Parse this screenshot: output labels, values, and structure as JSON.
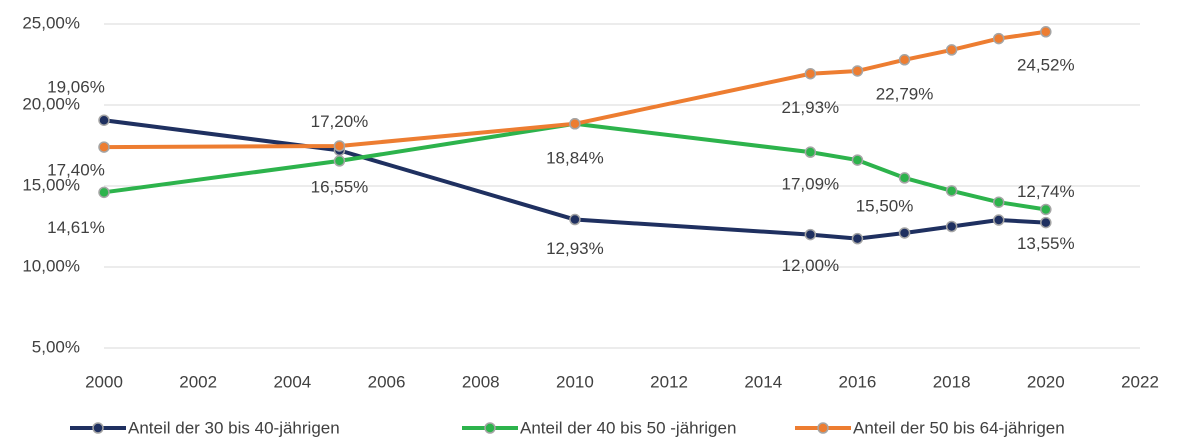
{
  "chart_data": {
    "type": "line",
    "x": [
      2000,
      2005,
      2010,
      2015,
      2016,
      2017,
      2018,
      2019,
      2020
    ],
    "xlim": [
      2000,
      2022
    ],
    "xticks": [
      2000,
      2002,
      2004,
      2006,
      2008,
      2010,
      2012,
      2014,
      2016,
      2018,
      2020,
      2022
    ],
    "ylim": [
      5,
      25
    ],
    "yticks": [
      {
        "value": 5,
        "label": "5,00%"
      },
      {
        "value": 10,
        "label": "10,00%"
      },
      {
        "value": 15,
        "label": "15,00%"
      },
      {
        "value": 20,
        "label": "20,00%"
      },
      {
        "value": 25,
        "label": "25,00%"
      }
    ],
    "grid": true,
    "legend": "bottom",
    "series": [
      {
        "name": "Anteil der 30 bis 40-jährigen",
        "color": "#1f3060",
        "values": [
          19.06,
          17.2,
          12.93,
          12.0,
          11.75,
          12.1,
          12.5,
          12.9,
          12.74
        ],
        "value_labels": [
          "19,06%",
          "17,20%",
          "12,93%",
          "12,00%",
          null,
          null,
          null,
          null,
          "12,74%"
        ]
      },
      {
        "name": "Anteil der 40 bis 50 -jährigen",
        "color": "#2db34c",
        "values": [
          14.61,
          16.55,
          18.84,
          17.09,
          16.6,
          15.5,
          14.7,
          14.0,
          13.55
        ],
        "value_labels": [
          "14,61%",
          "16,55%",
          "18,84%",
          "17,09%",
          null,
          "15,50%",
          null,
          null,
          "13,55%"
        ]
      },
      {
        "name": "Anteil der 50 bis 64-jährigen",
        "color": "#ed7d31",
        "values": [
          17.4,
          17.47,
          18.84,
          21.93,
          22.1,
          22.79,
          23.4,
          24.1,
          24.52
        ],
        "value_labels": [
          "17,40%",
          null,
          null,
          "21,93%",
          null,
          "22,79%",
          null,
          null,
          "24,52%"
        ]
      }
    ]
  }
}
